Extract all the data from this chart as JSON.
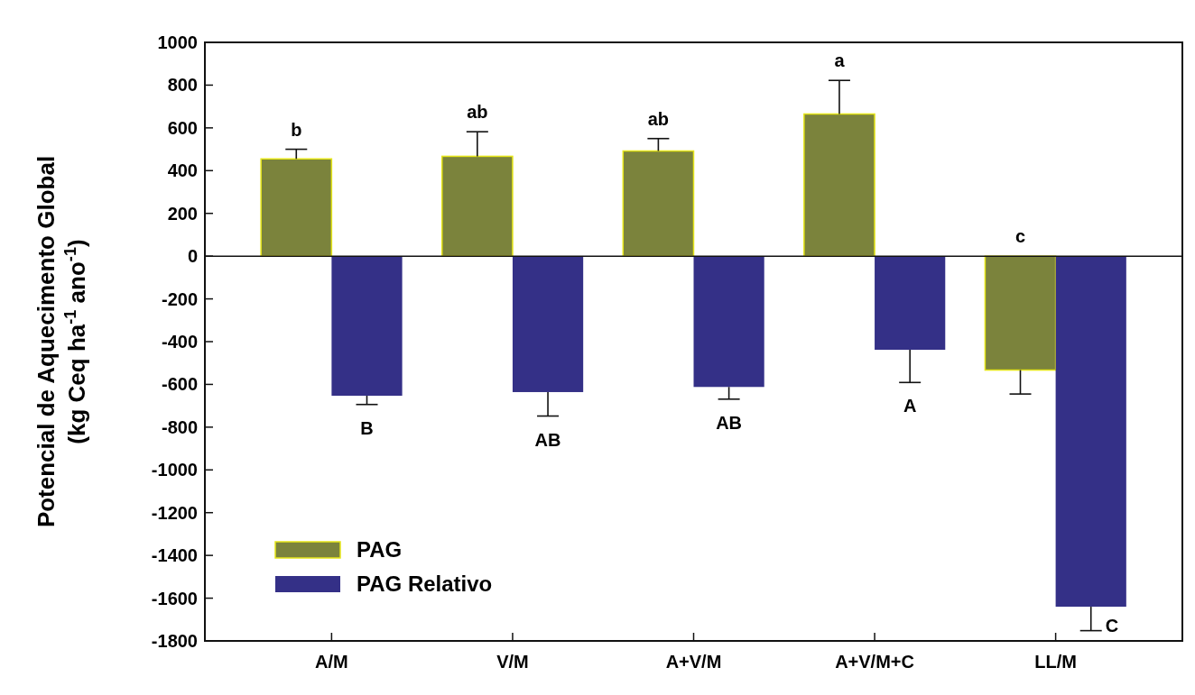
{
  "chart_data": {
    "type": "bar",
    "ylabel": "Potencial de Aquecimento Global\n(kg Ceq ha$^{-1}$ ano$^{-1}$)",
    "categories": [
      "A/M",
      "V/M",
      "A+V/M",
      "A+V/M+C",
      "LL/M"
    ],
    "series": [
      {
        "name": "PAG",
        "color": "#7b833c",
        "values": [
          455,
          467,
          492,
          665,
          -533
        ],
        "errors": [
          [
            455,
            500
          ],
          [
            467,
            582
          ],
          [
            492,
            550
          ],
          [
            665,
            822
          ],
          [
            -645,
            -533
          ]
        ]
      },
      {
        "name": "PAG Relativo",
        "color": "#343087",
        "values": [
          -653,
          -636,
          -612,
          -438,
          -1640
        ],
        "errors": [
          [
            -694,
            -653
          ],
          [
            -748,
            -636
          ],
          [
            -669,
            -612
          ],
          [
            -591,
            -438
          ],
          [
            -1752,
            -1640
          ]
        ]
      }
    ],
    "ylim": [
      -1800,
      1000
    ],
    "yticks": [
      -1800,
      -1600,
      -1400,
      -1200,
      -1000,
      -800,
      -600,
      -400,
      -200,
      0,
      200,
      400,
      600,
      800,
      1000
    ],
    "legend": "bottom left",
    "annotations": [
      "b",
      "ab",
      "ab",
      "a",
      "c",
      "B",
      "AB",
      "AB",
      "A",
      "C"
    ]
  }
}
